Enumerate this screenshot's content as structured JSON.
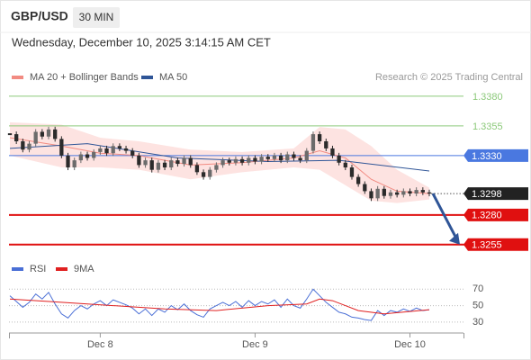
{
  "header": {
    "symbol": "GBP/USD",
    "interval": "30 MIN",
    "datetime": "Wednesday, December 10, 2025 3:14:15 AM CET",
    "credit": "Research © 2025 Trading Central"
  },
  "chart_data": [
    {
      "type": "candlestick",
      "close": [
        1.3348,
        1.3342,
        1.3335,
        1.334,
        1.335,
        1.3346,
        1.3352,
        1.3344,
        1.333,
        1.332,
        1.3326,
        1.3331,
        1.3328,
        1.3333,
        1.3336,
        1.3332,
        1.3338,
        1.3336,
        1.3334,
        1.333,
        1.3322,
        1.3326,
        1.3318,
        1.3324,
        1.332,
        1.3326,
        1.3323,
        1.3328,
        1.3322,
        1.3316,
        1.3312,
        1.3318,
        1.3322,
        1.3326,
        1.3324,
        1.3327,
        1.3324,
        1.3328,
        1.3325,
        1.3329,
        1.3327,
        1.333,
        1.3326,
        1.3331,
        1.3328,
        1.3326,
        1.3334,
        1.3348,
        1.3342,
        1.3336,
        1.333,
        1.3324,
        1.332,
        1.3312,
        1.3306,
        1.33,
        1.3294,
        1.3302,
        1.3296,
        1.3299,
        1.3297,
        1.33,
        1.3298,
        1.3301,
        1.3299,
        1.3298
      ],
      "up_color": "#6b6b6b",
      "down_color": "#2b2b2b",
      "series": [
        {
          "name": "MA 20 + Bollinger Bands",
          "color": "#f28b82",
          "band_color": "#fde3e1",
          "x": [
            0,
            8,
            14,
            20,
            28,
            36,
            44,
            48,
            52,
            56,
            60,
            65
          ],
          "values": [
            1.3345,
            1.3338,
            1.3332,
            1.333,
            1.3322,
            1.3324,
            1.3328,
            1.3334,
            1.3328,
            1.331,
            1.33,
            1.3298
          ],
          "upper": [
            1.3358,
            1.3356,
            1.3345,
            1.3342,
            1.3335,
            1.3333,
            1.3336,
            1.3354,
            1.3352,
            1.3338,
            1.3318,
            1.3303
          ],
          "lower": [
            1.333,
            1.332,
            1.332,
            1.3318,
            1.331,
            1.3316,
            1.332,
            1.3318,
            1.3305,
            1.3292,
            1.329,
            1.3293
          ]
        },
        {
          "name": "MA 50",
          "color": "#2f5597",
          "x": [
            0,
            12,
            26,
            40,
            51,
            65
          ],
          "values": [
            1.3336,
            1.334,
            1.3328,
            1.3325,
            1.3326,
            1.3317
          ]
        }
      ],
      "levels": [
        {
          "value": 1.338,
          "label": "1.3380",
          "color": "#8cc97a",
          "style": "text"
        },
        {
          "value": 1.3355,
          "label": "1.3355",
          "color": "#8cc97a",
          "style": "text"
        },
        {
          "value": 1.333,
          "label": "1.3330",
          "color": "#4a78e0",
          "style": "box"
        },
        {
          "value": 1.3298,
          "label": "1.3298",
          "color": "#222222",
          "style": "current"
        },
        {
          "value": 1.328,
          "label": "1.3280",
          "color": "#e01010",
          "style": "box"
        },
        {
          "value": 1.3255,
          "label": "1.3255",
          "color": "#e01010",
          "style": "box"
        }
      ],
      "target": 1.3255,
      "ylim": [
        1.3245,
        1.3389
      ],
      "xlim": [
        0,
        65
      ],
      "xticks": [
        {
          "value": 14,
          "label": "Dec 8"
        },
        {
          "value": 38,
          "label": "Dec 9"
        },
        {
          "value": 62,
          "label": "Dec 10"
        }
      ]
    },
    {
      "type": "line",
      "series": [
        {
          "name": "RSI",
          "color": "#4a6fd6",
          "values": [
            62,
            55,
            48,
            54,
            64,
            58,
            66,
            52,
            40,
            35,
            44,
            50,
            46,
            52,
            56,
            50,
            57,
            54,
            51,
            47,
            40,
            46,
            38,
            46,
            42,
            50,
            45,
            52,
            44,
            39,
            36,
            46,
            50,
            54,
            50,
            55,
            48,
            56,
            50,
            55,
            52,
            57,
            48,
            58,
            50,
            47,
            58,
            70,
            62,
            54,
            48,
            42,
            40,
            36,
            35,
            33,
            32,
            44,
            38,
            44,
            42,
            46,
            43,
            47,
            44,
            45
          ]
        },
        {
          "name": "9MA",
          "color": "#e02020",
          "x": [
            0,
            8,
            16,
            24,
            32,
            40,
            46,
            48,
            50,
            54,
            58,
            65
          ],
          "values": [
            58,
            54,
            50,
            46,
            44,
            50,
            52,
            58,
            56,
            44,
            40,
            45
          ]
        }
      ],
      "ylim": [
        19,
        79
      ],
      "yticks": [
        70,
        50,
        30
      ],
      "grid": true
    }
  ]
}
